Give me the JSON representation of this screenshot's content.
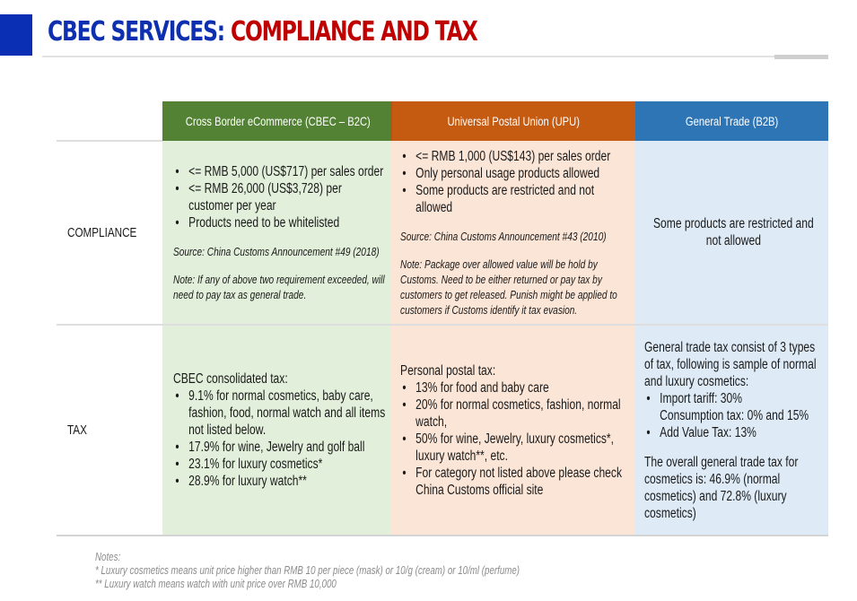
{
  "header": {
    "title_part1": "CBEC SERVICES:",
    "title_part2": "COMPLIANCE AND TAX",
    "colors": {
      "title_blue": "#0d2fb0",
      "title_red": "#c00000",
      "accent_block": "#0a2fb4"
    }
  },
  "table": {
    "columns": [
      {
        "label": "Cross Border eCommerce (CBEC – B2C)",
        "color": "#548235",
        "cell_color": "#e2efda"
      },
      {
        "label": "Universal Postal Union (UPU)",
        "color": "#c55a11",
        "cell_color": "#fbe5d6"
      },
      {
        "label": "General Trade (B2B)",
        "color": "#2e75b6",
        "cell_color": "#deebf7"
      }
    ],
    "rows": {
      "compliance": {
        "label": "COMPLIANCE",
        "cbec": {
          "bullets": [
            "<= RMB 5,000 (US$717) per sales order",
            "<= RMB 26,000 (US$3,728) per customer per year",
            "Products need to be whitelisted"
          ],
          "source": "Source: China Customs Announcement #49 (2018)",
          "note": "Note: If any of above two requirement exceeded, will need to pay tax as general trade."
        },
        "upu": {
          "bullets": [
            "<= RMB 1,000 (US$143) per sales order",
            "Only personal usage products allowed",
            "Some products are restricted and not allowed"
          ],
          "source": "Source: China Customs Announcement #43 (2010)",
          "note": "Note:  Package over allowed value will be hold by Customs. Need to be either returned or pay tax by customers to get released. Punish might be applied to customers if Customs identify it tax evasion."
        },
        "general": {
          "text": "Some products are restricted and not allowed"
        }
      },
      "tax": {
        "label": "TAX",
        "cbec": {
          "intro": "CBEC consolidated tax:",
          "bullets": [
            "9.1% for normal cosmetics, baby care, fashion, food, normal watch and all items not listed below.",
            "17.9% for wine, Jewelry and golf ball",
            "23.1% for luxury cosmetics*",
            "28.9% for luxury watch**"
          ]
        },
        "upu": {
          "intro": "Personal postal tax:",
          "bullets": [
            "13% for food and baby care",
            "20% for normal cosmetics, fashion, normal watch,",
            "50% for wine, Jewelry, luxury cosmetics*, luxury watch**, etc.",
            "For category not listed above please check China Customs official site"
          ]
        },
        "general": {
          "intro": "General trade tax consist of 3 types of tax, following is sample of normal and luxury cosmetics:",
          "bullets": [
            "Import tariff: 30%",
            "Consumption tax: 0% and 15%",
            "Add Value Tax: 13%"
          ],
          "summary": "The overall general trade tax for cosmetics is: 46.9% (normal cosmetics) and 72.8% (luxury cosmetics)"
        }
      }
    }
  },
  "notes": {
    "heading": "Notes:",
    "items": [
      "* Luxury cosmetics means unit price higher than RMB 10 per piece (mask) or 10/g (cream) or 10/ml (perfume)",
      "** Luxury watch means watch with unit price over RMB 10,000"
    ]
  }
}
